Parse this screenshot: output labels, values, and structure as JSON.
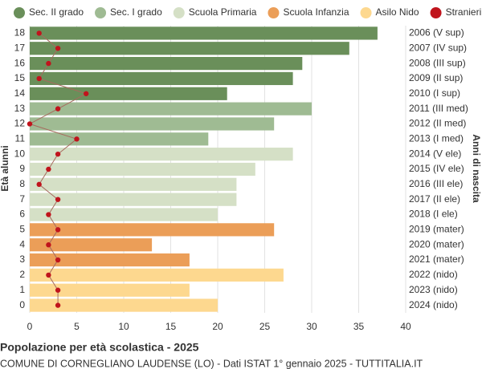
{
  "chart_data": {
    "type": "bar",
    "orientation": "horizontal",
    "title": "Popolazione per età scolastica - 2025",
    "subtitle": "COMUNE DI CORNEGLIANO LAUDENSE (LO) - Dati ISTAT 1° gennaio 2025 - TUTTITALIA.IT",
    "y_label": "Età alunni",
    "y2_label": "Anni di nascita",
    "categories": [
      "18",
      "17",
      "16",
      "15",
      "14",
      "13",
      "12",
      "11",
      "10",
      "9",
      "8",
      "7",
      "6",
      "5",
      "4",
      "3",
      "2",
      "1",
      "0"
    ],
    "year_labels": [
      "2006 (V sup)",
      "2007 (IV sup)",
      "2008 (III sup)",
      "2009 (II sup)",
      "2010 (I sup)",
      "2011 (III med)",
      "2012 (II med)",
      "2013 (I med)",
      "2014 (V ele)",
      "2015 (IV ele)",
      "2016 (III ele)",
      "2017 (II ele)",
      "2018 (I ele)",
      "2019 (mater)",
      "2020 (mater)",
      "2021 (mater)",
      "2022 (nido)",
      "2023 (nido)",
      "2024 (nido)"
    ],
    "xlim": [
      0,
      40
    ],
    "xticks": [
      0,
      5,
      10,
      15,
      20,
      25,
      30,
      35,
      40
    ],
    "grid": true,
    "series": [
      {
        "name": "Sec. II grado",
        "color": "#6a8f5a",
        "values": [
          37,
          34,
          29,
          28,
          21,
          null,
          null,
          null,
          null,
          null,
          null,
          null,
          null,
          null,
          null,
          null,
          null,
          null,
          null
        ]
      },
      {
        "name": "Sec. I grado",
        "color": "#9fbb93",
        "values": [
          null,
          null,
          null,
          null,
          null,
          30,
          26,
          19,
          null,
          null,
          null,
          null,
          null,
          null,
          null,
          null,
          null,
          null,
          null
        ]
      },
      {
        "name": "Scuola Primaria",
        "color": "#d5e0c6",
        "values": [
          null,
          null,
          null,
          null,
          null,
          null,
          null,
          null,
          28,
          24,
          22,
          22,
          20,
          null,
          null,
          null,
          null,
          null,
          null
        ]
      },
      {
        "name": "Scuola Infanzia",
        "color": "#eb9e58",
        "values": [
          null,
          null,
          null,
          null,
          null,
          null,
          null,
          null,
          null,
          null,
          null,
          null,
          null,
          26,
          13,
          17,
          null,
          null,
          null
        ]
      },
      {
        "name": "Asilo Nido",
        "color": "#fdd88f",
        "values": [
          null,
          null,
          null,
          null,
          null,
          null,
          null,
          null,
          null,
          null,
          null,
          null,
          null,
          null,
          null,
          null,
          27,
          17,
          20
        ]
      },
      {
        "name": "Stranieri",
        "color": "#c0141c",
        "type": "line",
        "values": [
          1,
          3,
          2,
          1,
          6,
          3,
          0,
          5,
          3,
          2,
          1,
          3,
          2,
          3,
          2,
          3,
          2,
          3,
          3
        ]
      }
    ]
  }
}
